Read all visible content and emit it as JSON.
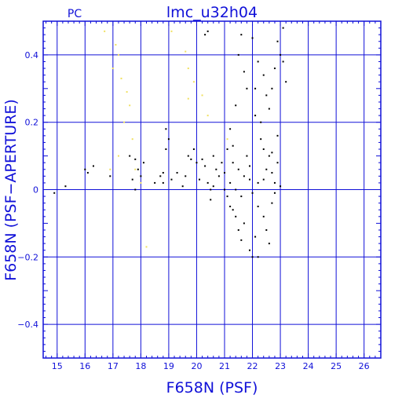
{
  "chart_data": {
    "type": "scatter",
    "title": "lmc_u32h04",
    "subtitle": "PC",
    "xlabel": "F658N (PSF)",
    "ylabel": "F658N (PSF−APERTURE)",
    "xlim": [
      14.5,
      26.6
    ],
    "ylim": [
      -0.5,
      0.5
    ],
    "xticks": [
      "15",
      "16",
      "17",
      "18",
      "19",
      "20",
      "21",
      "22",
      "23",
      "24",
      "25",
      "26"
    ],
    "yticks": [
      "0.4",
      "0.2",
      "0",
      "−0.2",
      "−0.4"
    ],
    "grid": true,
    "colors": {
      "axis": "#1010d8",
      "black_points": "#000000",
      "yellow_points": "#f0e060"
    },
    "series": [
      {
        "color": "black",
        "points": [
          [
            14.9,
            -0.01
          ],
          [
            15.3,
            0.01
          ],
          [
            16.0,
            0.06
          ],
          [
            16.3,
            0.07
          ],
          [
            16.1,
            0.05
          ],
          [
            16.9,
            0.04
          ],
          [
            17.6,
            0.1
          ],
          [
            17.8,
            0.09
          ],
          [
            17.9,
            0.06
          ],
          [
            17.7,
            0.03
          ],
          [
            18.0,
            0.04
          ],
          [
            17.8,
            0.0
          ],
          [
            18.1,
            0.08
          ],
          [
            18.5,
            0.02
          ],
          [
            18.7,
            0.04
          ],
          [
            18.8,
            0.05
          ],
          [
            18.9,
            0.18
          ],
          [
            19.0,
            0.15
          ],
          [
            18.9,
            0.12
          ],
          [
            18.8,
            0.02
          ],
          [
            19.1,
            0.03
          ],
          [
            19.3,
            0.05
          ],
          [
            19.5,
            0.01
          ],
          [
            19.6,
            0.04
          ],
          [
            19.7,
            0.1
          ],
          [
            19.8,
            0.09
          ],
          [
            19.9,
            0.12
          ],
          [
            20.0,
            0.08
          ],
          [
            20.1,
            0.03
          ],
          [
            20.2,
            0.09
          ],
          [
            20.3,
            0.07
          ],
          [
            20.4,
            0.02
          ],
          [
            20.5,
            0.0
          ],
          [
            20.6,
            0.1
          ],
          [
            20.7,
            0.06
          ],
          [
            20.8,
            0.04
          ],
          [
            20.5,
            -0.03
          ],
          [
            20.6,
            0.01
          ],
          [
            20.9,
            0.08
          ],
          [
            20.4,
            0.47
          ],
          [
            20.3,
            0.46
          ],
          [
            21.0,
            0.05
          ],
          [
            21.1,
            0.12
          ],
          [
            21.2,
            0.02
          ],
          [
            21.2,
            -0.05
          ],
          [
            21.3,
            0.08
          ],
          [
            21.4,
            0.0
          ],
          [
            21.5,
            0.06
          ],
          [
            21.6,
            -0.02
          ],
          [
            21.7,
            0.04
          ],
          [
            21.8,
            0.1
          ],
          [
            21.9,
            0.03
          ],
          [
            22.0,
            -0.01
          ],
          [
            21.3,
            -0.06
          ],
          [
            21.4,
            -0.08
          ],
          [
            21.5,
            -0.12
          ],
          [
            21.6,
            -0.15
          ],
          [
            21.7,
            -0.1
          ],
          [
            21.9,
            -0.18
          ],
          [
            22.0,
            -0.2
          ],
          [
            22.1,
            -0.14
          ],
          [
            22.2,
            -0.2
          ],
          [
            21.2,
            0.18
          ],
          [
            21.4,
            0.25
          ],
          [
            21.5,
            0.4
          ],
          [
            21.7,
            0.35
          ],
          [
            21.8,
            0.3
          ],
          [
            22.0,
            0.45
          ],
          [
            22.1,
            0.3
          ],
          [
            22.3,
            0.2
          ],
          [
            22.4,
            0.34
          ],
          [
            22.5,
            0.28
          ],
          [
            22.6,
            0.24
          ],
          [
            22.7,
            0.3
          ],
          [
            22.8,
            0.36
          ],
          [
            22.9,
            0.44
          ],
          [
            22.3,
            0.15
          ],
          [
            22.4,
            0.12
          ],
          [
            22.6,
            0.1
          ],
          [
            22.7,
            0.05
          ],
          [
            22.8,
            0.02
          ],
          [
            22.9,
            0.08
          ],
          [
            23.0,
            0.01
          ],
          [
            23.0,
            0.4
          ],
          [
            23.1,
            0.48
          ],
          [
            23.2,
            0.32
          ],
          [
            22.2,
            -0.05
          ],
          [
            22.4,
            -0.08
          ],
          [
            22.5,
            -0.12
          ],
          [
            22.6,
            -0.16
          ],
          [
            22.7,
            -0.04
          ],
          [
            22.8,
            -0.01
          ],
          [
            21.1,
            -0.02
          ],
          [
            21.0,
            0.0
          ],
          [
            21.9,
            0.07
          ],
          [
            22.2,
            0.02
          ],
          [
            22.4,
            0.03
          ],
          [
            22.5,
            0.06
          ],
          [
            21.3,
            0.13
          ],
          [
            22.7,
            0.11
          ],
          [
            22.9,
            0.16
          ],
          [
            23.1,
            0.38
          ],
          [
            22.2,
            0.38
          ],
          [
            21.6,
            0.46
          ],
          [
            22.1,
            0.22
          ]
        ]
      },
      {
        "color": "yellow",
        "points": [
          [
            16.7,
            0.47
          ],
          [
            17.1,
            0.43
          ],
          [
            17.2,
            0.4
          ],
          [
            17.0,
            0.36
          ],
          [
            17.3,
            0.33
          ],
          [
            17.5,
            0.29
          ],
          [
            17.6,
            0.25
          ],
          [
            17.4,
            0.2
          ],
          [
            17.7,
            0.15
          ],
          [
            17.2,
            0.1
          ],
          [
            16.9,
            0.06
          ],
          [
            17.8,
            0.06
          ],
          [
            18.0,
            0.02
          ],
          [
            18.2,
            -0.17
          ],
          [
            19.1,
            0.47
          ],
          [
            19.6,
            0.41
          ],
          [
            19.7,
            0.36
          ],
          [
            19.9,
            0.32
          ],
          [
            20.2,
            0.28
          ],
          [
            20.4,
            0.22
          ],
          [
            21.1,
            0.15
          ],
          [
            19.7,
            0.27
          ]
        ]
      }
    ]
  }
}
